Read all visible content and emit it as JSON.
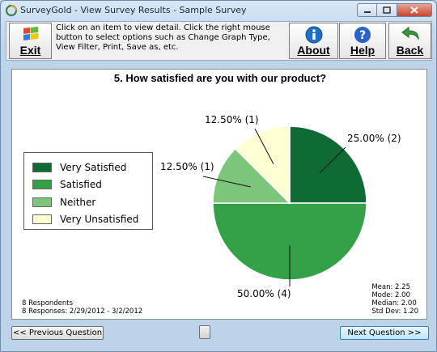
{
  "window": {
    "title": "SurveyGold - View Survey Results - Sample Survey",
    "app_icon": "surveygold-app-icon",
    "controls": [
      "minimize-icon",
      "maximize-icon",
      "close-icon"
    ]
  },
  "toolbar": {
    "exit_label": "Exit",
    "exit_icon": "windows-flag-icon",
    "hint": "Click on an item to view detail. Click the right mouse button to select options such as Change Graph Type, View Filter, Print, Save as, etc.",
    "about_label": "About",
    "about_icon": "info-icon",
    "help_label": "Help",
    "help_icon": "question-icon",
    "back_label": "Back",
    "back_icon": "back-arrow-icon"
  },
  "question": "5. How satisfied are you with our product?",
  "chart_data": {
    "type": "pie",
    "categories": [
      "Very Satisfied",
      "Satisfied",
      "Neither",
      "Very Unsatisfied"
    ],
    "values": [
      25.0,
      50.0,
      12.5,
      12.5
    ],
    "counts": [
      2,
      4,
      1,
      1
    ],
    "labels": [
      "25.00% (2)",
      "50.00% (4)",
      "12.50% (1)",
      "12.50% (1)"
    ],
    "colors": [
      "#0f6b34",
      "#34a048",
      "#7cc67b",
      "#ffffd4"
    ],
    "legend_position": "left"
  },
  "footer": {
    "respondents": "8 Respondents",
    "responses": "8 Responses: 2/29/2012 - 3/2/2012",
    "stats": [
      "Mean: 2.25",
      "Mode: 2.00",
      "Median: 2.00",
      "Std Dev: 1.20"
    ]
  },
  "nav": {
    "previous_label": "<< Previous Question",
    "next_label": "Next Question >>"
  }
}
